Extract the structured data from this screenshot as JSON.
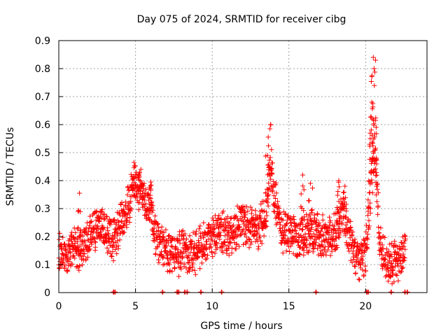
{
  "chart_data": {
    "type": "scatter",
    "title": "Day 075 of 2024, SRMTID for receiver cibg",
    "xlabel": "GPS time / hours",
    "ylabel": "SRMTID / TECUs",
    "xlim": [
      0,
      24
    ],
    "ylim": [
      0,
      0.9
    ],
    "xticks": [
      "0",
      "5",
      "10",
      "15",
      "20"
    ],
    "yticks": [
      "0",
      "0.1",
      "0.2",
      "0.3",
      "0.4",
      "0.5",
      "0.6",
      "0.7",
      "0.8",
      "0.9"
    ],
    "grid": true,
    "marker": "plus",
    "color": "#ff0000",
    "series": [
      {
        "name": "SRMTID",
        "trend": [
          [
            0.0,
            0.14
          ],
          [
            0.5,
            0.13
          ],
          [
            1.0,
            0.15
          ],
          [
            1.5,
            0.16
          ],
          [
            2.0,
            0.2
          ],
          [
            2.5,
            0.24
          ],
          [
            3.0,
            0.22
          ],
          [
            3.5,
            0.18
          ],
          [
            4.0,
            0.24
          ],
          [
            4.5,
            0.3
          ],
          [
            5.0,
            0.4
          ],
          [
            5.5,
            0.33
          ],
          [
            6.0,
            0.3
          ],
          [
            6.3,
            0.2
          ],
          [
            6.8,
            0.16
          ],
          [
            7.3,
            0.14
          ],
          [
            7.7,
            0.12
          ],
          [
            8.0,
            0.16
          ],
          [
            8.5,
            0.13
          ],
          [
            9.0,
            0.15
          ],
          [
            9.5,
            0.17
          ],
          [
            10.0,
            0.2
          ],
          [
            10.5,
            0.22
          ],
          [
            11.0,
            0.21
          ],
          [
            11.5,
            0.22
          ],
          [
            12.0,
            0.25
          ],
          [
            12.5,
            0.23
          ],
          [
            13.0,
            0.22
          ],
          [
            13.5,
            0.28
          ],
          [
            13.8,
            0.45
          ],
          [
            14.0,
            0.35
          ],
          [
            14.5,
            0.22
          ],
          [
            15.0,
            0.23
          ],
          [
            15.5,
            0.2
          ],
          [
            16.0,
            0.2
          ],
          [
            16.5,
            0.22
          ],
          [
            17.0,
            0.21
          ],
          [
            17.5,
            0.2
          ],
          [
            18.0,
            0.21
          ],
          [
            18.5,
            0.28
          ],
          [
            18.8,
            0.22
          ],
          [
            19.2,
            0.16
          ],
          [
            19.6,
            0.12
          ],
          [
            20.0,
            0.14
          ],
          [
            20.3,
            0.35
          ],
          [
            20.6,
            0.5
          ],
          [
            20.9,
            0.2
          ],
          [
            21.3,
            0.12
          ],
          [
            21.8,
            0.1
          ],
          [
            22.3,
            0.12
          ],
          [
            22.6,
            0.16
          ]
        ],
        "peaks": [
          [
            1.35,
            0.355
          ],
          [
            4.9,
            0.465
          ],
          [
            5.35,
            0.44
          ],
          [
            6.0,
            0.395
          ],
          [
            13.6,
            0.49
          ],
          [
            13.8,
            0.6
          ],
          [
            15.9,
            0.42
          ],
          [
            16.4,
            0.39
          ],
          [
            18.25,
            0.4
          ],
          [
            18.65,
            0.38
          ],
          [
            20.3,
            0.55
          ],
          [
            20.5,
            0.84
          ],
          [
            20.65,
            0.615
          ],
          [
            20.4,
            0.68
          ],
          [
            20.55,
            0.8
          ]
        ],
        "near_zero_hours": [
          3.55,
          3.65,
          6.75,
          7.7,
          7.8,
          8.2,
          8.35,
          9.25,
          10.6,
          16.75,
          20.05,
          20.15,
          21.65,
          22.55,
          22.7
        ]
      }
    ]
  }
}
